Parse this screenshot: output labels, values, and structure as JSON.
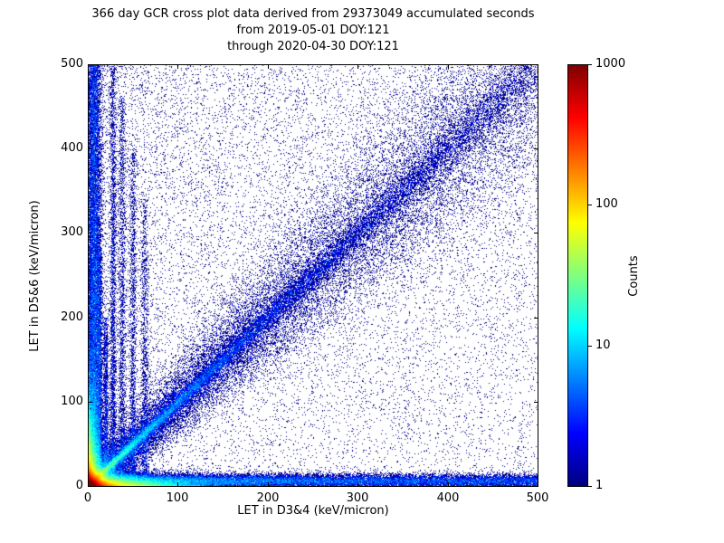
{
  "figure": {
    "title_lines": [
      "366 day GCR cross plot data derived from 29373049 accumulated seconds",
      "from 2019-05-01 DOY:121",
      "through 2020-04-30 DOY:121"
    ],
    "xlabel": "LET in D3&4 (keV/micron)",
    "ylabel": "LET in D5&6 (keV/micron)",
    "colorbar_label": "Counts"
  },
  "chart_data": {
    "type": "heatmap",
    "title": "366 day GCR cross plot data derived from 29373049 accumulated seconds from 2019-05-01 DOY:121 through 2020-04-30 DOY:121",
    "xlabel": "LET in D3&4 (keV/micron)",
    "ylabel": "LET in D5&6 (keV/micron)",
    "xlim": [
      0,
      500
    ],
    "ylim": [
      0,
      500
    ],
    "xticks": [
      0,
      100,
      200,
      300,
      400,
      500
    ],
    "yticks": [
      0,
      100,
      200,
      300,
      400,
      500
    ],
    "grid": false,
    "background": "#ffffff",
    "marker_color_min": "#000080",
    "colorbar": {
      "label": "Counts",
      "scale": "log",
      "min": 1,
      "max": 1000,
      "ticks": [
        1,
        10,
        100,
        1000
      ],
      "colormap": "jet"
    },
    "features": [
      {
        "name": "origin-hotspot",
        "type": "exp2",
        "n": 120000,
        "sx": 5,
        "sy": 5
      },
      {
        "name": "x-axis-arm",
        "type": "exp2",
        "n": 50000,
        "sx": 28,
        "sy": 4
      },
      {
        "name": "y-axis-arm",
        "type": "exp2",
        "n": 40000,
        "sx": 4,
        "sy": 28
      },
      {
        "name": "horizontal-band",
        "type": "band_x",
        "n": 35000,
        "pow": 1.8,
        "center": 7,
        "sigma": 4
      },
      {
        "name": "vertical-band",
        "type": "band_y",
        "n": 25000,
        "pow": 1.8,
        "center": 7,
        "sigma": 4
      },
      {
        "name": "diagonal-tight",
        "type": "diag",
        "n": 30000,
        "pow": 3,
        "sigma0": 1.5,
        "sigma_slope": 0.02
      },
      {
        "name": "diagonal-broad",
        "type": "diag",
        "n": 32000,
        "pow": 1.6,
        "sigma0": 6,
        "sigma_slope": 0.09
      },
      {
        "name": "ion-streaks",
        "type": "streaks",
        "ypow": 1.6,
        "lines": [
          {
            "x": 13,
            "ymax": 280,
            "n": 2500,
            "w": 1.4
          },
          {
            "x": 20,
            "ymax": 200,
            "n": 1800,
            "w": 1.4
          },
          {
            "x": 28,
            "ymax": 500,
            "n": 3200,
            "w": 1.8
          },
          {
            "x": 38,
            "ymax": 460,
            "n": 2300,
            "w": 2.0
          },
          {
            "x": 50,
            "ymax": 400,
            "n": 1900,
            "w": 2.0
          },
          {
            "x": 63,
            "ymax": 340,
            "n": 1500,
            "w": 2.2
          }
        ]
      },
      {
        "name": "background-scatter",
        "type": "uniform",
        "n": 9000
      },
      {
        "name": "upper-left-cloud",
        "type": "power_cloud",
        "n": 7000,
        "xpow": 1.7,
        "ypow": 0.7
      }
    ]
  }
}
